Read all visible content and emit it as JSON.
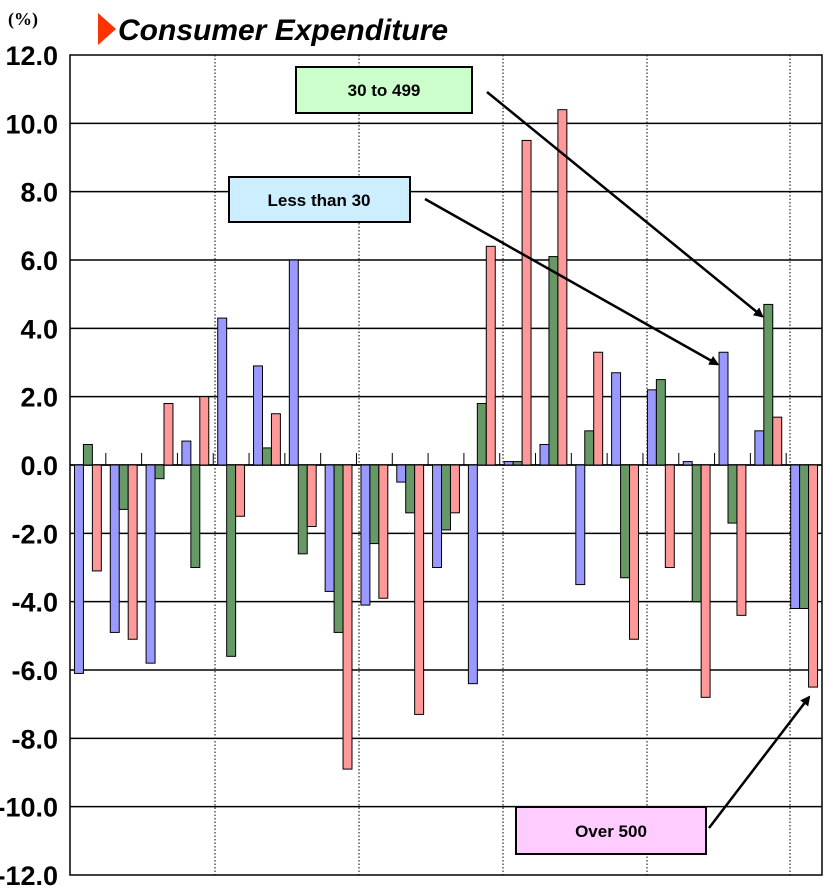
{
  "chart_data": {
    "type": "bar",
    "title": "Consumer Expenditure",
    "unit_label": "(%)",
    "ylim": [
      -12,
      12
    ],
    "yticks": [
      "12.0",
      "10.0",
      "8.0",
      "6.0",
      "4.0",
      "2.0",
      "0.0",
      "-2.0",
      "-4.0",
      "-6.0",
      "-8.0",
      "-10.0",
      "-12.0"
    ],
    "grid": true,
    "series": [
      {
        "name": "Less than 30",
        "color": "#9999ff",
        "values": [
          -6.1,
          -4.9,
          -5.8,
          0.7,
          4.3,
          2.9,
          6.0,
          -3.7,
          -4.1,
          -0.5,
          -3.0,
          -6.4,
          0.1,
          0.6,
          -3.5,
          2.7,
          2.2,
          0.1,
          3.3,
          1.0,
          -4.2
        ]
      },
      {
        "name": "30 to 499",
        "color": "#669966",
        "values": [
          0.6,
          -1.3,
          -0.4,
          -3.0,
          -5.6,
          0.5,
          -2.6,
          -4.9,
          -2.3,
          -1.4,
          -1.9,
          1.8,
          0.1,
          6.1,
          1.0,
          -3.3,
          2.5,
          -4.0,
          -1.7,
          4.7,
          -4.2
        ]
      },
      {
        "name": "Over 500",
        "color": "#ff9999",
        "values": [
          -3.1,
          -5.1,
          1.8,
          2.0,
          -1.5,
          1.5,
          -1.8,
          -8.9,
          -3.9,
          -7.3,
          -1.4,
          6.4,
          9.5,
          10.4,
          3.3,
          -5.1,
          -3.0,
          -6.8,
          -4.4,
          1.4,
          -6.5
        ]
      }
    ],
    "annotations": [
      {
        "label": "30 to 499",
        "box_color": "#ccffcc",
        "target_series": "30 to 499",
        "target_index": 19
      },
      {
        "label": "Less than 30",
        "box_color": "#cceeff",
        "target_series": "Less than 30",
        "target_index": 18
      },
      {
        "label": "Over 500",
        "box_color": "#ffccff",
        "target_series": "Over 500",
        "target_index": 20
      }
    ]
  }
}
